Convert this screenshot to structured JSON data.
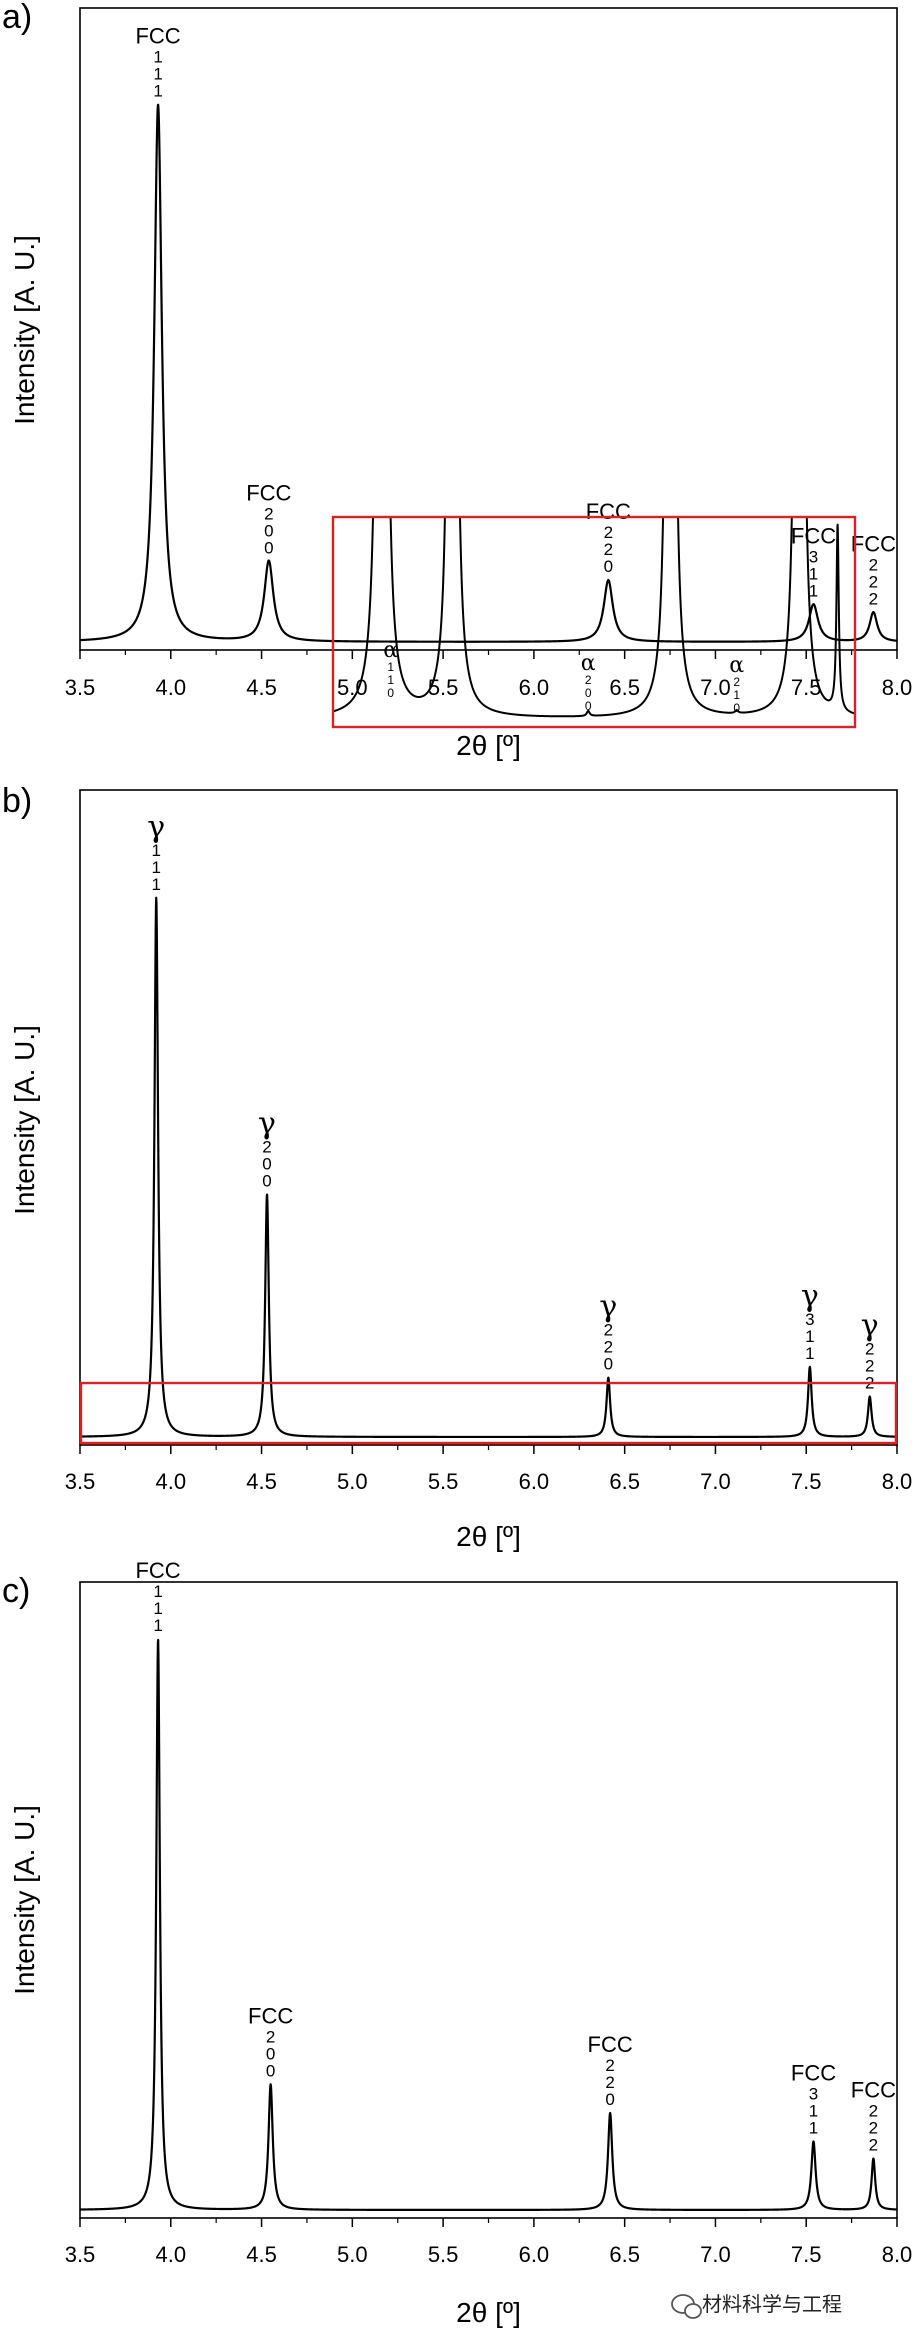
{
  "watermark": {
    "text": "材料科学与工程",
    "icon": "wechat-icon"
  },
  "colors": {
    "inset_frame": "#e02020",
    "line": "#000000"
  },
  "chart_data": [
    {
      "type": "line",
      "panel": "a)",
      "xlabel": "2θ [º]",
      "ylabel": "Intensity [A. U.]",
      "xlim": [
        3.5,
        8.0
      ],
      "ylim": [
        0,
        1.18
      ],
      "xticks": [
        "3.5",
        "4.0",
        "4.5",
        "5.0",
        "5.5",
        "6.0",
        "6.5",
        "7.0",
        "7.5",
        "8.0"
      ],
      "peaks": [
        {
          "center": 3.93,
          "height": 1.0,
          "width": 0.025,
          "phase": "FCC",
          "hkl": [
            "1",
            "1",
            "1"
          ]
        },
        {
          "center": 4.54,
          "height": 0.15,
          "width": 0.03,
          "phase": "FCC",
          "hkl": [
            "2",
            "0",
            "0"
          ]
        },
        {
          "center": 6.41,
          "height": 0.115,
          "width": 0.03,
          "phase": "FCC",
          "hkl": [
            "2",
            "2",
            "0"
          ]
        },
        {
          "center": 7.54,
          "height": 0.07,
          "width": 0.03,
          "phase": "FCC",
          "hkl": [
            "3",
            "1",
            "1"
          ]
        },
        {
          "center": 7.87,
          "height": 0.055,
          "width": 0.025,
          "phase": "FCC",
          "hkl": [
            "2",
            "2",
            "2"
          ]
        }
      ]
    },
    {
      "type": "line",
      "panel": "b)",
      "xlabel": "2θ [º]",
      "ylabel": "Intensity [A. U.]",
      "xlim": [
        3.5,
        8.0
      ],
      "ylim": [
        0,
        1.2
      ],
      "xticks": [
        "3.5",
        "4.0",
        "4.5",
        "5.0",
        "5.5",
        "6.0",
        "6.5",
        "7.0",
        "7.5",
        "8.0"
      ],
      "peaks": [
        {
          "center": 3.92,
          "height": 1.0,
          "width": 0.012,
          "phase": "γ",
          "hkl": [
            "1",
            "1",
            "1"
          ]
        },
        {
          "center": 4.53,
          "height": 0.45,
          "width": 0.012,
          "phase": "γ",
          "hkl": [
            "2",
            "0",
            "0"
          ]
        },
        {
          "center": 6.41,
          "height": 0.11,
          "width": 0.012,
          "phase": "γ",
          "hkl": [
            "2",
            "2",
            "0"
          ]
        },
        {
          "center": 7.52,
          "height": 0.13,
          "width": 0.012,
          "phase": "γ",
          "hkl": [
            "3",
            "1",
            "1"
          ]
        },
        {
          "center": 7.85,
          "height": 0.075,
          "width": 0.012,
          "phase": "γ",
          "hkl": [
            "2",
            "2",
            "2"
          ]
        }
      ],
      "inset": {
        "xlim": [
          3.5,
          8.0
        ],
        "ylim": [
          0,
          1.0
        ],
        "peaks": [
          {
            "center": 3.92,
            "height": 40,
            "width": 0.012
          },
          {
            "center": 3.98,
            "height": 0.09,
            "width": 0.012,
            "phase": "α",
            "hkl": [
              "1",
              "1",
              "0"
            ]
          },
          {
            "center": 4.53,
            "height": 30,
            "width": 0.012
          },
          {
            "center": 5.7,
            "height": 0.025,
            "width": 0.015,
            "phase": "α",
            "hkl": [
              "2",
              "0",
              "0"
            ]
          },
          {
            "center": 6.41,
            "height": 30,
            "width": 0.012
          },
          {
            "center": 6.98,
            "height": 0.015,
            "width": 0.015,
            "phase": "α",
            "hkl": [
              "2",
              "1",
              "0"
            ]
          },
          {
            "center": 7.52,
            "height": 30,
            "width": 0.012
          },
          {
            "center": 7.85,
            "height": 0.92,
            "width": 0.012
          }
        ]
      }
    },
    {
      "type": "line",
      "panel": "c)",
      "xlabel": "2θ [º]",
      "ylabel": "Intensity [A. U.]",
      "xlim": [
        3.5,
        8.0
      ],
      "ylim": [
        0,
        1.1
      ],
      "xticks": [
        "3.5",
        "4.0",
        "4.5",
        "5.0",
        "5.5",
        "6.0",
        "6.5",
        "7.0",
        "7.5",
        "8.0"
      ],
      "peaks": [
        {
          "center": 3.93,
          "height": 1.0,
          "width": 0.012,
          "phase": "FCC",
          "hkl": [
            "1",
            "1",
            "1"
          ]
        },
        {
          "center": 4.55,
          "height": 0.22,
          "width": 0.014,
          "phase": "FCC",
          "hkl": [
            "2",
            "0",
            "0"
          ]
        },
        {
          "center": 6.42,
          "height": 0.17,
          "width": 0.014,
          "phase": "FCC",
          "hkl": [
            "2",
            "2",
            "0"
          ]
        },
        {
          "center": 7.54,
          "height": 0.12,
          "width": 0.014,
          "phase": "FCC",
          "hkl": [
            "3",
            "1",
            "1"
          ]
        },
        {
          "center": 7.87,
          "height": 0.09,
          "width": 0.012,
          "phase": "FCC",
          "hkl": [
            "2",
            "2",
            "2"
          ]
        }
      ]
    }
  ]
}
